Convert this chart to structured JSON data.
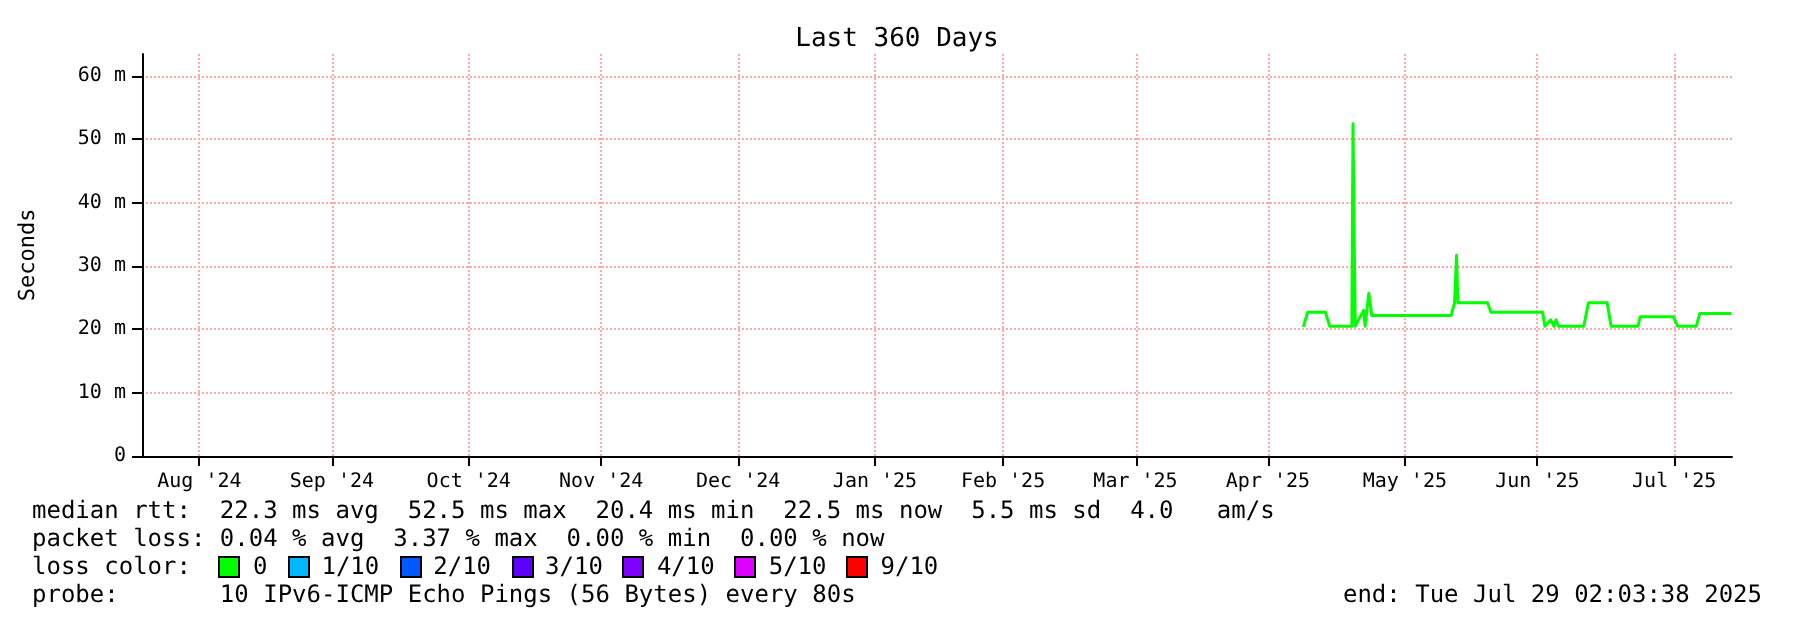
{
  "chart_data": {
    "type": "line",
    "title": "Last 360 Days",
    "ylabel": "Seconds",
    "xlim": [
      "2024-08-03",
      "2025-07-29T02:03"
    ],
    "xticks": [
      {
        "value": "2024-08-16",
        "label": "Aug '24"
      },
      {
        "value": "2024-09-15",
        "label": "Sep '24"
      },
      {
        "value": "2024-10-16",
        "label": "Oct '24"
      },
      {
        "value": "2024-11-15",
        "label": "Nov '24"
      },
      {
        "value": "2024-12-16",
        "label": "Dec '24"
      },
      {
        "value": "2025-01-16",
        "label": "Jan '25"
      },
      {
        "value": "2025-02-14",
        "label": "Feb '25"
      },
      {
        "value": "2025-03-16",
        "label": "Mar '25"
      },
      {
        "value": "2025-04-15",
        "label": "Apr '25"
      },
      {
        "value": "2025-05-16",
        "label": "May '25"
      },
      {
        "value": "2025-06-15",
        "label": "Jun '25"
      },
      {
        "value": "2025-07-16",
        "label": "Jul '25"
      }
    ],
    "ylim": [
      0,
      63.5
    ],
    "yticks": [
      0,
      {
        "value": 10,
        "label": "10 m"
      },
      {
        "value": 20,
        "label": "20 m"
      },
      {
        "value": 30,
        "label": "30 m"
      },
      {
        "value": 40,
        "label": "40 m"
      },
      {
        "value": 50,
        "label": "50 m"
      },
      {
        "value": 60,
        "label": "60 m"
      }
    ],
    "grid": true,
    "legend": "bottom",
    "legend_title": "loss color:",
    "marker": "none",
    "series": [
      {
        "name": "0",
        "color": "#00ff00",
        "x": [
          "2025-04-23",
          "2025-04-24",
          "2025-04-28",
          "2025-04-29",
          "2025-05-04",
          "2025-05-04T06:00",
          "2025-05-04T18:00",
          "2025-05-05",
          "2025-05-06T16:00",
          "2025-05-07",
          "2025-05-07T20:00",
          "2025-05-08T12:00",
          "2025-05-26T12:00",
          "2025-05-27T06:00",
          "2025-05-27T17:00",
          "2025-05-28",
          "2025-06-03T17:00",
          "2025-06-04T12:00",
          "2025-06-16T05:00",
          "2025-06-16T17:00",
          "2025-06-18",
          "2025-06-18T19:00",
          "2025-06-19T05:00",
          "2025-06-19T19:00",
          "2025-06-25T12:00",
          "2025-06-26T14:00",
          "2025-06-30T19:00",
          "2025-07-01T17:00",
          "2025-07-07T19:00",
          "2025-07-08T07:00",
          "2025-07-15T19:00",
          "2025-07-16T19:00",
          "2025-07-21",
          "2025-07-21T19:00",
          "2025-07-28T22:00"
        ],
        "values": [
          20.4,
          22.7,
          22.7,
          20.5,
          20.5,
          52.5,
          20.5,
          20.5,
          23,
          20.5,
          25.7,
          22.2,
          22.2,
          24.2,
          31.7,
          24.2,
          24.2,
          22.7,
          22.7,
          20.5,
          21.5,
          20.5,
          21.5,
          20.5,
          20.5,
          24.2,
          24.2,
          20.5,
          20.5,
          22,
          22,
          20.5,
          20.5,
          22.5,
          22.5
        ]
      },
      {
        "name": "1/10",
        "color": "#00b8ff"
      },
      {
        "name": "2/10",
        "color": "#0059ff"
      },
      {
        "name": "3/10",
        "color": "#5e00ff"
      },
      {
        "name": "4/10",
        "color": "#7e00ff"
      },
      {
        "name": "5/10",
        "color": "#dd00ff"
      },
      {
        "name": "9/10",
        "color": "#ff0000"
      }
    ],
    "annotations": [
      "median rtt:  22.3 ms avg  52.5 ms max  20.4 ms min  22.5 ms now  5.5 ms sd  4.0   am/s",
      "packet loss: 0.04 % avg  3.37 % max  0.00 % min  0.00 % now",
      "probe:       10 IPv6-ICMP Echo Pings (56 Bytes) every 80s",
      "end: Tue Jul 29 02:03:38 2025"
    ]
  }
}
